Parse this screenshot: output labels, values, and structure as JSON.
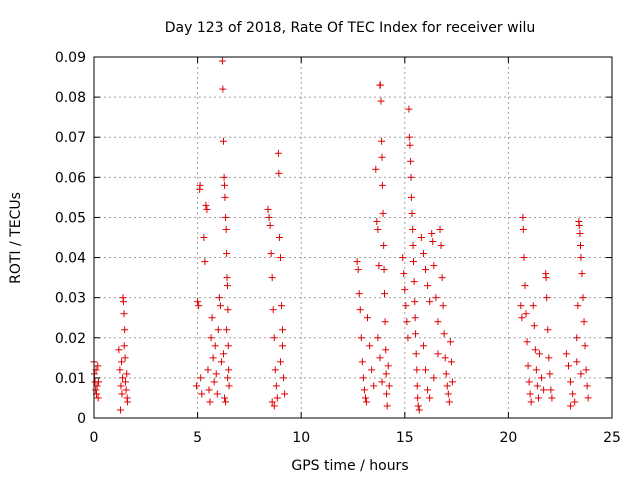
{
  "chart_data": {
    "type": "scatter",
    "title": "Day 123 of 2018, Rate Of TEC Index for receiver wilu",
    "xlabel": "GPS time / hours",
    "ylabel": "ROTI / TECUs",
    "xlim": [
      0,
      25
    ],
    "ylim": [
      0,
      0.09
    ],
    "x_ticks": [
      0,
      5,
      10,
      15,
      20,
      25
    ],
    "x_tick_labels": [
      "0",
      "5",
      "10",
      "15",
      "20",
      "25"
    ],
    "y_ticks": [
      0,
      0.01,
      0.02,
      0.03,
      0.04,
      0.05,
      0.06,
      0.07,
      0.08,
      0.09
    ],
    "y_tick_labels": [
      "0",
      "0.01",
      "0.02",
      "0.03",
      "0.04",
      "0.05",
      "0.06",
      "0.07",
      "0.08",
      "0.09"
    ],
    "grid": true,
    "marker": "+",
    "marker_color": "#e00000",
    "series": [
      {
        "name": "ROTI",
        "points": [
          [
            0.0,
            0.014
          ],
          [
            0.02,
            0.011
          ],
          [
            0.05,
            0.009
          ],
          [
            0.08,
            0.007
          ],
          [
            0.1,
            0.012
          ],
          [
            0.12,
            0.006
          ],
          [
            0.15,
            0.008
          ],
          [
            0.18,
            0.013
          ],
          [
            0.2,
            0.005
          ],
          [
            0.22,
            0.009
          ],
          [
            1.2,
            0.017
          ],
          [
            1.25,
            0.012
          ],
          [
            1.3,
            0.008
          ],
          [
            1.35,
            0.006
          ],
          [
            1.38,
            0.01
          ],
          [
            1.4,
            0.03
          ],
          [
            1.42,
            0.029
          ],
          [
            1.45,
            0.026
          ],
          [
            1.48,
            0.022
          ],
          [
            1.5,
            0.015
          ],
          [
            1.52,
            0.009
          ],
          [
            1.55,
            0.007
          ],
          [
            1.58,
            0.011
          ],
          [
            1.6,
            0.005
          ],
          [
            1.62,
            0.004
          ],
          [
            1.28,
            0.002
          ],
          [
            1.33,
            0.014
          ],
          [
            1.46,
            0.018
          ],
          [
            4.95,
            0.008
          ],
          [
            5.0,
            0.029
          ],
          [
            5.05,
            0.028
          ],
          [
            5.1,
            0.057
          ],
          [
            5.12,
            0.058
          ],
          [
            5.15,
            0.01
          ],
          [
            5.2,
            0.006
          ],
          [
            5.3,
            0.045
          ],
          [
            5.35,
            0.039
          ],
          [
            5.4,
            0.053
          ],
          [
            5.45,
            0.052
          ],
          [
            5.5,
            0.012
          ],
          [
            5.55,
            0.007
          ],
          [
            5.6,
            0.004
          ],
          [
            5.65,
            0.02
          ],
          [
            5.7,
            0.025
          ],
          [
            5.75,
            0.015
          ],
          [
            5.8,
            0.009
          ],
          [
            5.85,
            0.018
          ],
          [
            5.9,
            0.011
          ],
          [
            5.95,
            0.006
          ],
          [
            6.0,
            0.022
          ],
          [
            6.05,
            0.03
          ],
          [
            6.1,
            0.028
          ],
          [
            6.15,
            0.014
          ],
          [
            6.2,
            0.089
          ],
          [
            6.22,
            0.082
          ],
          [
            6.25,
            0.069
          ],
          [
            6.28,
            0.06
          ],
          [
            6.3,
            0.058
          ],
          [
            6.32,
            0.055
          ],
          [
            6.35,
            0.05
          ],
          [
            6.38,
            0.047
          ],
          [
            6.4,
            0.041
          ],
          [
            6.42,
            0.035
          ],
          [
            6.44,
            0.033
          ],
          [
            6.46,
            0.027
          ],
          [
            6.48,
            0.018
          ],
          [
            6.5,
            0.012
          ],
          [
            6.52,
            0.008
          ],
          [
            6.3,
            0.005
          ],
          [
            6.35,
            0.004
          ],
          [
            6.25,
            0.016
          ],
          [
            6.4,
            0.022
          ],
          [
            6.45,
            0.01
          ],
          [
            8.4,
            0.052
          ],
          [
            8.45,
            0.05
          ],
          [
            8.5,
            0.048
          ],
          [
            8.55,
            0.041
          ],
          [
            8.6,
            0.035
          ],
          [
            8.65,
            0.027
          ],
          [
            8.7,
            0.02
          ],
          [
            8.75,
            0.012
          ],
          [
            8.8,
            0.008
          ],
          [
            8.85,
            0.005
          ],
          [
            8.9,
            0.066
          ],
          [
            8.92,
            0.061
          ],
          [
            8.95,
            0.045
          ],
          [
            9.0,
            0.04
          ],
          [
            9.05,
            0.028
          ],
          [
            9.1,
            0.018
          ],
          [
            9.15,
            0.01
          ],
          [
            9.2,
            0.006
          ],
          [
            8.6,
            0.004
          ],
          [
            8.7,
            0.003
          ],
          [
            9.0,
            0.014
          ],
          [
            9.1,
            0.022
          ],
          [
            12.7,
            0.039
          ],
          [
            12.75,
            0.037
          ],
          [
            12.8,
            0.031
          ],
          [
            12.85,
            0.027
          ],
          [
            12.9,
            0.02
          ],
          [
            12.95,
            0.014
          ],
          [
            13.0,
            0.01
          ],
          [
            13.05,
            0.007
          ],
          [
            13.1,
            0.005
          ],
          [
            13.15,
            0.004
          ],
          [
            13.2,
            0.025
          ],
          [
            13.3,
            0.018
          ],
          [
            13.4,
            0.012
          ],
          [
            13.5,
            0.008
          ],
          [
            13.6,
            0.062
          ],
          [
            13.65,
            0.049
          ],
          [
            13.7,
            0.047
          ],
          [
            13.75,
            0.038
          ],
          [
            13.8,
            0.083
          ],
          [
            13.82,
            0.083
          ],
          [
            13.85,
            0.079
          ],
          [
            13.88,
            0.069
          ],
          [
            13.9,
            0.065
          ],
          [
            13.92,
            0.058
          ],
          [
            13.95,
            0.051
          ],
          [
            13.98,
            0.043
          ],
          [
            14.0,
            0.037
          ],
          [
            14.02,
            0.031
          ],
          [
            14.05,
            0.024
          ],
          [
            14.08,
            0.017
          ],
          [
            14.1,
            0.011
          ],
          [
            14.12,
            0.006
          ],
          [
            14.15,
            0.003
          ],
          [
            13.7,
            0.02
          ],
          [
            13.8,
            0.015
          ],
          [
            13.9,
            0.009
          ],
          [
            14.2,
            0.013
          ],
          [
            14.25,
            0.008
          ],
          [
            14.9,
            0.04
          ],
          [
            14.95,
            0.036
          ],
          [
            15.0,
            0.032
          ],
          [
            15.05,
            0.028
          ],
          [
            15.1,
            0.024
          ],
          [
            15.15,
            0.02
          ],
          [
            15.2,
            0.077
          ],
          [
            15.22,
            0.07
          ],
          [
            15.25,
            0.068
          ],
          [
            15.28,
            0.064
          ],
          [
            15.3,
            0.06
          ],
          [
            15.32,
            0.055
          ],
          [
            15.35,
            0.051
          ],
          [
            15.38,
            0.047
          ],
          [
            15.4,
            0.043
          ],
          [
            15.42,
            0.039
          ],
          [
            15.45,
            0.034
          ],
          [
            15.48,
            0.029
          ],
          [
            15.5,
            0.025
          ],
          [
            15.52,
            0.021
          ],
          [
            15.55,
            0.016
          ],
          [
            15.58,
            0.012
          ],
          [
            15.6,
            0.008
          ],
          [
            15.62,
            0.005
          ],
          [
            15.65,
            0.003
          ],
          [
            15.7,
            0.002
          ],
          [
            15.8,
            0.045
          ],
          [
            15.9,
            0.041
          ],
          [
            16.0,
            0.037
          ],
          [
            16.1,
            0.033
          ],
          [
            16.2,
            0.029
          ],
          [
            16.3,
            0.046
          ],
          [
            16.35,
            0.044
          ],
          [
            16.4,
            0.038
          ],
          [
            16.5,
            0.03
          ],
          [
            16.6,
            0.024
          ],
          [
            16.7,
            0.047
          ],
          [
            16.75,
            0.043
          ],
          [
            16.8,
            0.035
          ],
          [
            16.85,
            0.028
          ],
          [
            16.9,
            0.021
          ],
          [
            16.95,
            0.015
          ],
          [
            17.0,
            0.011
          ],
          [
            17.05,
            0.008
          ],
          [
            17.1,
            0.006
          ],
          [
            17.15,
            0.004
          ],
          [
            17.2,
            0.019
          ],
          [
            17.25,
            0.014
          ],
          [
            17.3,
            0.009
          ],
          [
            15.9,
            0.018
          ],
          [
            16.0,
            0.012
          ],
          [
            16.1,
            0.007
          ],
          [
            16.2,
            0.005
          ],
          [
            16.4,
            0.01
          ],
          [
            16.6,
            0.016
          ],
          [
            20.6,
            0.028
          ],
          [
            20.65,
            0.025
          ],
          [
            20.7,
            0.05
          ],
          [
            20.72,
            0.047
          ],
          [
            20.75,
            0.04
          ],
          [
            20.8,
            0.033
          ],
          [
            20.85,
            0.026
          ],
          [
            20.9,
            0.019
          ],
          [
            20.95,
            0.013
          ],
          [
            21.0,
            0.009
          ],
          [
            21.05,
            0.006
          ],
          [
            21.1,
            0.004
          ],
          [
            21.2,
            0.028
          ],
          [
            21.25,
            0.023
          ],
          [
            21.3,
            0.017
          ],
          [
            21.35,
            0.012
          ],
          [
            21.4,
            0.008
          ],
          [
            21.45,
            0.005
          ],
          [
            21.5,
            0.016
          ],
          [
            21.6,
            0.01
          ],
          [
            21.7,
            0.007
          ],
          [
            21.8,
            0.036
          ],
          [
            21.82,
            0.035
          ],
          [
            21.85,
            0.03
          ],
          [
            21.9,
            0.022
          ],
          [
            21.95,
            0.015
          ],
          [
            22.0,
            0.011
          ],
          [
            22.05,
            0.007
          ],
          [
            22.1,
            0.005
          ],
          [
            22.8,
            0.016
          ],
          [
            22.9,
            0.013
          ],
          [
            23.0,
            0.009
          ],
          [
            23.1,
            0.006
          ],
          [
            23.2,
            0.004
          ],
          [
            23.3,
            0.02
          ],
          [
            23.35,
            0.028
          ],
          [
            23.4,
            0.049
          ],
          [
            23.42,
            0.048
          ],
          [
            23.45,
            0.046
          ],
          [
            23.48,
            0.043
          ],
          [
            23.5,
            0.04
          ],
          [
            23.55,
            0.036
          ],
          [
            23.6,
            0.03
          ],
          [
            23.65,
            0.024
          ],
          [
            23.7,
            0.018
          ],
          [
            23.75,
            0.012
          ],
          [
            23.8,
            0.008
          ],
          [
            23.85,
            0.005
          ],
          [
            23.0,
            0.003
          ],
          [
            23.3,
            0.014
          ],
          [
            23.5,
            0.011
          ]
        ]
      }
    ]
  }
}
